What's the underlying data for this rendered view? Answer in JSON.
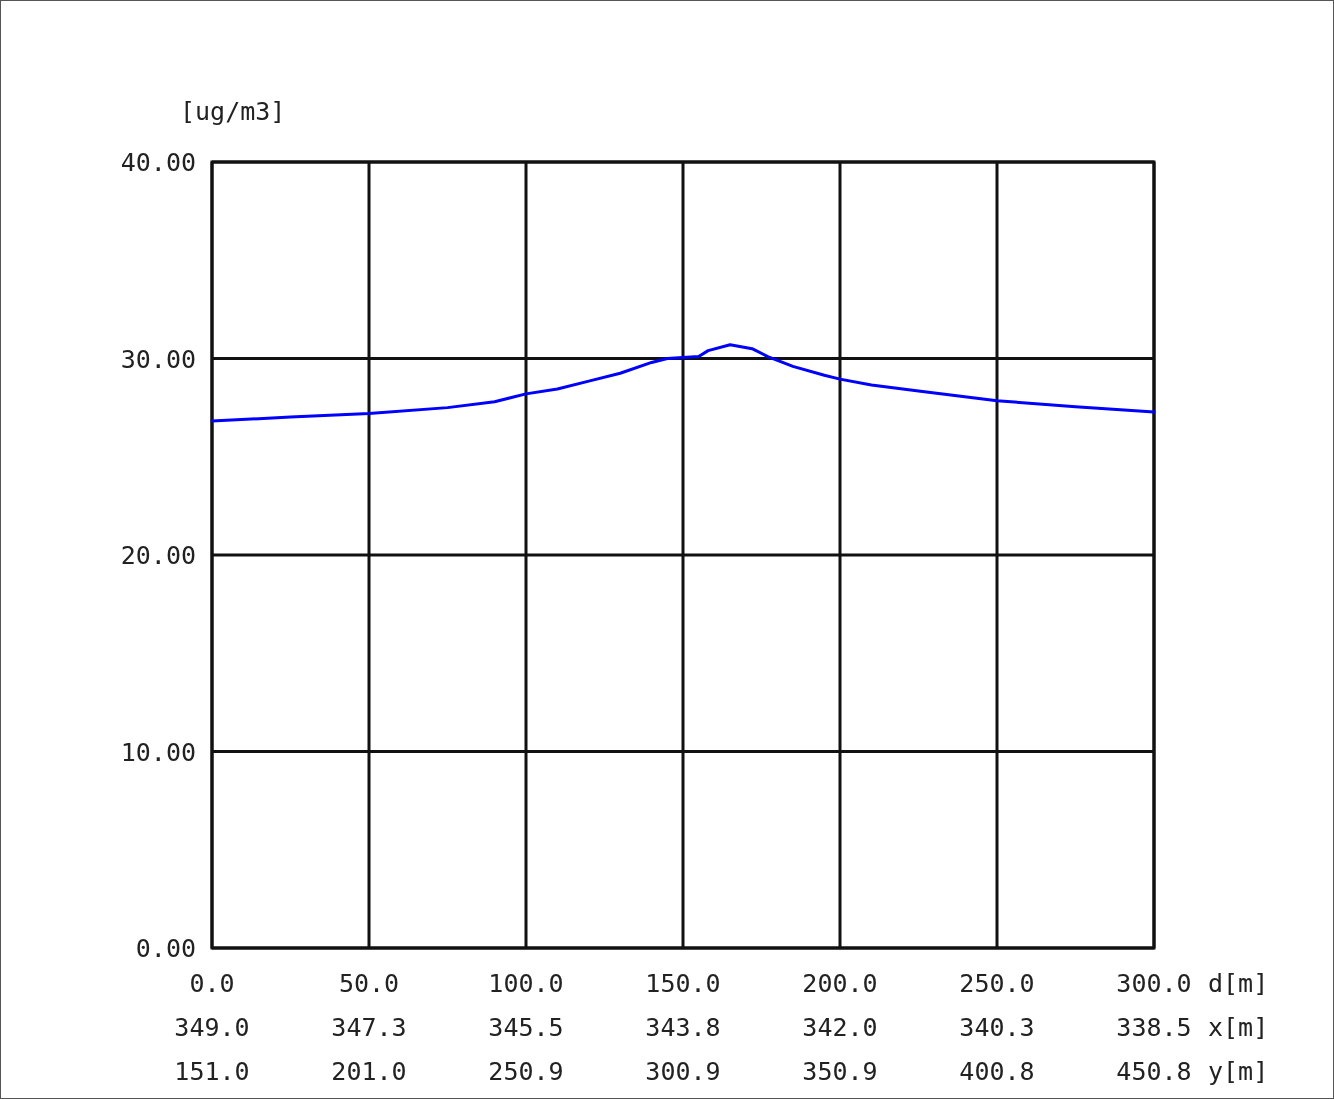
{
  "chart_data": {
    "type": "line",
    "ylabel": "[ug/m3]",
    "xlabel": "d[m]",
    "x2label": "x[m]",
    "annotations": [
      "151.0",
      "201.0",
      "250.9",
      "300.9",
      "350.9",
      "400.8",
      "450.8",
      "y[m]"
    ],
    "x": [
      0,
      25,
      50,
      75,
      90,
      100,
      110,
      120,
      130,
      140,
      145,
      155,
      158,
      165,
      172,
      177,
      185,
      195,
      200,
      210,
      225,
      250,
      275,
      300
    ],
    "series": [
      {
        "color": "#0000ff",
        "values": [
          26.82,
          27.02,
          27.2,
          27.5,
          27.8,
          28.2,
          28.45,
          28.85,
          29.25,
          29.8,
          30.0,
          30.1,
          30.4,
          30.7,
          30.5,
          30.1,
          29.6,
          29.15,
          28.95,
          28.65,
          28.35,
          27.85,
          27.55,
          27.28
        ]
      }
    ],
    "xlim": [
      0,
      300
    ],
    "xticks": [
      {
        "value": 0,
        "label": "0.0"
      },
      {
        "value": 50,
        "label": "50.0"
      },
      {
        "value": 100,
        "label": "100.0"
      },
      {
        "value": 150,
        "label": "150.0"
      },
      {
        "value": 200,
        "label": "200.0"
      },
      {
        "value": 250,
        "label": "250.0"
      },
      {
        "value": 300,
        "label": "300.0"
      }
    ],
    "x2lim": [
      349,
      338.5
    ],
    "x2ticks": [
      {
        "value": 349,
        "label": "349.0"
      },
      {
        "value": 347.25,
        "label": "347.3"
      },
      {
        "value": 345.5,
        "label": "345.5"
      },
      {
        "value": 343.75,
        "label": "343.8"
      },
      {
        "value": 342,
        "label": "342.0"
      },
      {
        "value": 340.25,
        "label": "340.3"
      },
      {
        "value": 338.5,
        "label": "338.5"
      }
    ],
    "ylim": [
      0,
      40
    ],
    "yticks": [
      {
        "value": 0,
        "label": "0.00"
      },
      {
        "value": 10,
        "label": "10.00"
      },
      {
        "value": 20,
        "label": "20.00"
      },
      {
        "value": 30,
        "label": "30.00"
      },
      {
        "value": 40,
        "label": "40.00"
      }
    ],
    "grid": true,
    "line_style": "solid",
    "marker": "none"
  }
}
